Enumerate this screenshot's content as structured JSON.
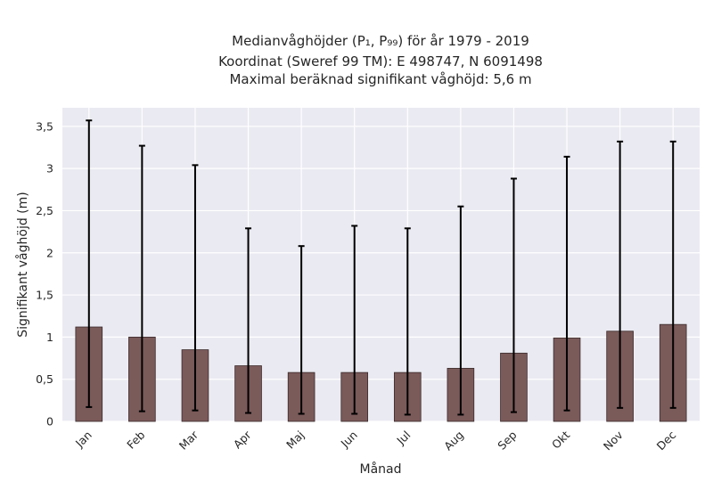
{
  "chart_data": {
    "type": "bar",
    "title_lines": [
      "Medianvåghöjder (P₁, P₉₉) för år 1979 - 2019",
      "Koordinat (Sweref 99 TM): E 498747, N 6091498",
      "Maximal beräknad signifikant våghöjd: 5,6 m"
    ],
    "xlabel": "Månad",
    "ylabel": "Signifikant våghöjd (m)",
    "categories": [
      "Jan",
      "Feb",
      "Mar",
      "Apr",
      "Maj",
      "Jun",
      "Jul",
      "Aug",
      "Sep",
      "Okt",
      "Nov",
      "Dec"
    ],
    "values": [
      1.12,
      1.0,
      0.85,
      0.66,
      0.58,
      0.58,
      0.58,
      0.63,
      0.81,
      0.99,
      1.07,
      1.15
    ],
    "error_low": [
      0.17,
      0.12,
      0.13,
      0.1,
      0.09,
      0.09,
      0.08,
      0.08,
      0.11,
      0.13,
      0.16,
      0.16
    ],
    "error_high": [
      3.57,
      3.27,
      3.04,
      2.29,
      2.08,
      2.32,
      2.29,
      2.55,
      2.88,
      3.14,
      3.32,
      3.32
    ],
    "ylim": [
      0,
      3.72
    ],
    "yticks": [
      0,
      0.5,
      1,
      1.5,
      2,
      2.5,
      3,
      3.5
    ],
    "ytick_labels": [
      "0",
      "0,5",
      "1",
      "1,5",
      "2",
      "2,5",
      "3",
      "3,5"
    ],
    "grid": true,
    "colors": {
      "bar": "#7b5a5a",
      "bar_edge": "#3a2a2a",
      "error": "#000000",
      "plot_bg": "#eaeaf2",
      "grid": "#ffffff"
    }
  }
}
